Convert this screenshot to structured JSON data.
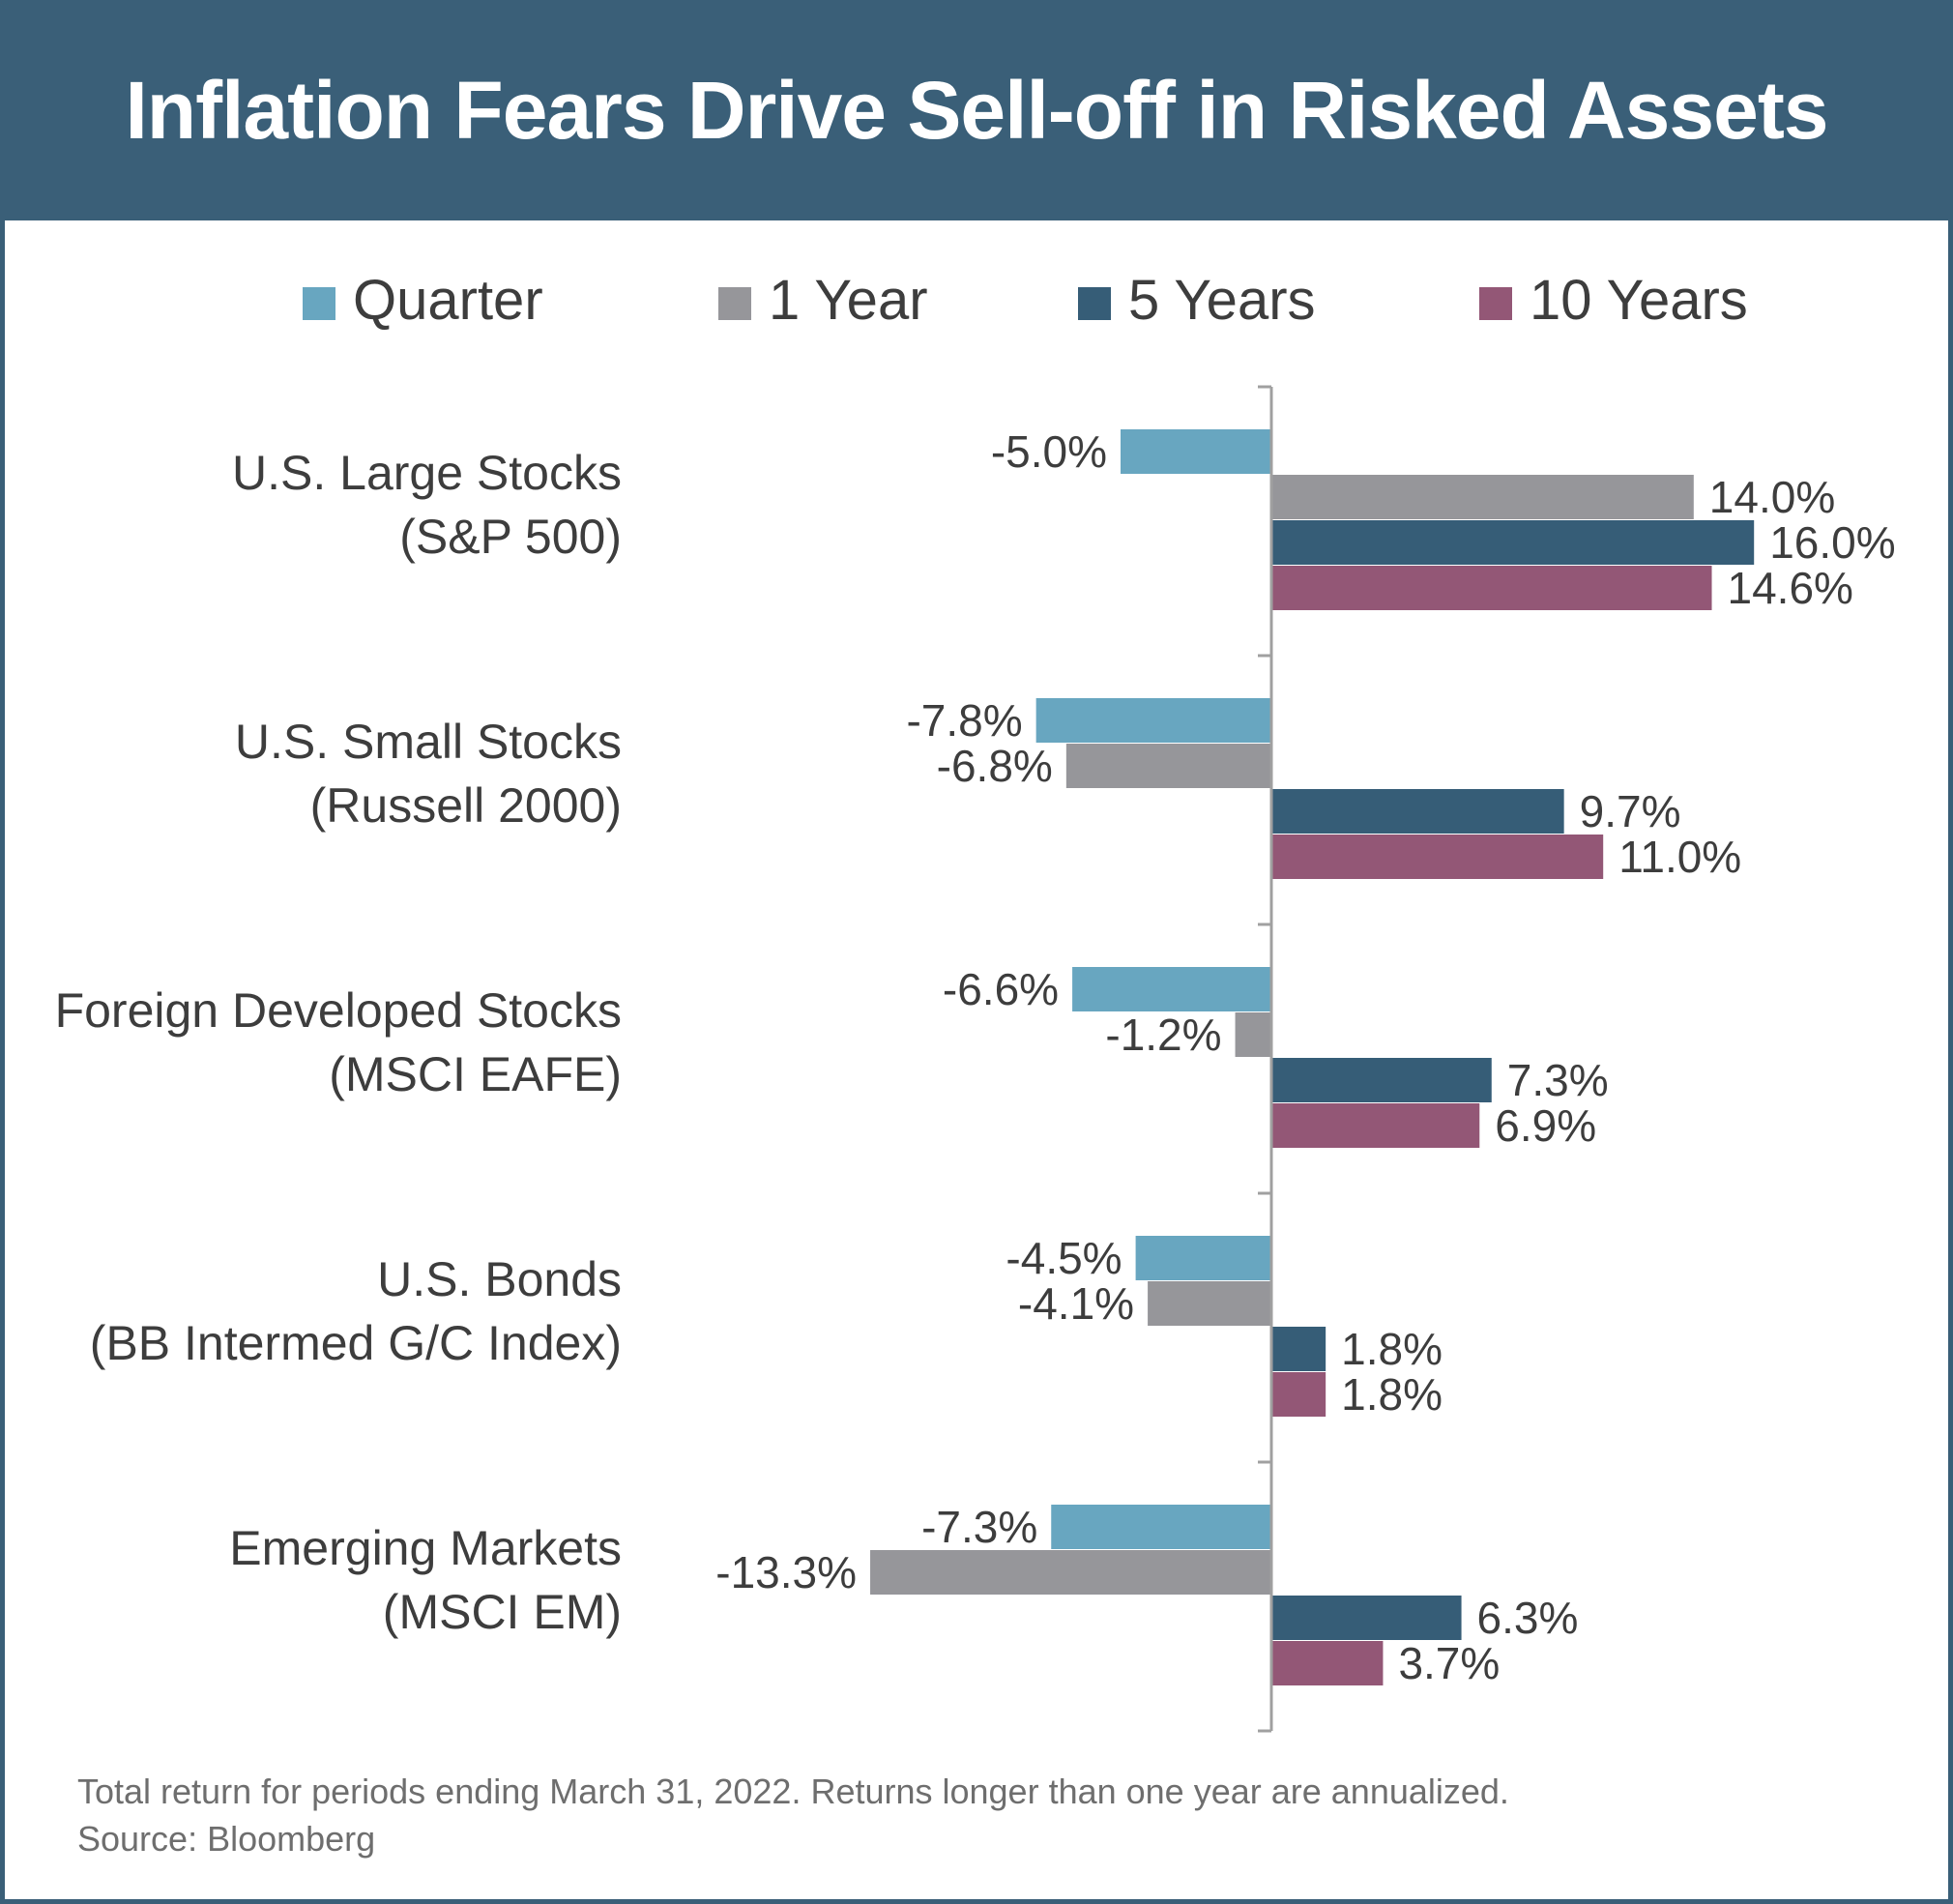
{
  "header": {
    "title": "Inflation Fears Drive Sell-off in Risked Assets"
  },
  "footer": {
    "note": "Total return for periods ending March 31, 2022. Returns longer than one year are annualized.",
    "source": "Source: Bloomberg"
  },
  "colors": {
    "header_bg": "#3a5f78",
    "quarter": "#68a6c0",
    "one_year": "#96969a",
    "five_years": "#365d77",
    "ten_years": "#935776",
    "text": "#3d3d3d"
  },
  "chart_data": {
    "type": "bar",
    "orientation": "horizontal",
    "title": "Inflation Fears Drive Sell-off in Risked Assets",
    "legend_position": "top",
    "grid": false,
    "categories": [
      [
        "U.S. Large Stocks",
        "(S&P 500)"
      ],
      [
        "U.S. Small Stocks",
        "(Russell 2000)"
      ],
      [
        "Foreign Developed Stocks",
        "(MSCI EAFE)"
      ],
      [
        "U.S. Bonds",
        "(BB Intermed G/C Index)"
      ],
      [
        "Emerging Markets",
        "(MSCI EM)"
      ]
    ],
    "series": [
      {
        "name": "Quarter",
        "color": "#68a6c0",
        "values": [
          -5.0,
          -7.8,
          -6.6,
          -4.5,
          -7.3
        ],
        "labels": [
          "-5.0%",
          "-7.8%",
          "-6.6%",
          "-4.5%",
          "-7.3%"
        ]
      },
      {
        "name": "1 Year",
        "color": "#96969a",
        "values": [
          14.0,
          -6.8,
          -1.2,
          -4.1,
          -13.3
        ],
        "labels": [
          "14.0%",
          "-6.8%",
          "-1.2%",
          "-4.1%",
          "-13.3%"
        ]
      },
      {
        "name": "5 Years",
        "color": "#365d77",
        "values": [
          16.0,
          9.7,
          7.3,
          1.8,
          6.3
        ],
        "labels": [
          "16.0%",
          "9.7%",
          "7.3%",
          "1.8%",
          "6.3%"
        ]
      },
      {
        "name": "10 Years",
        "color": "#935776",
        "values": [
          14.6,
          11.0,
          6.9,
          1.8,
          3.7
        ],
        "labels": [
          "14.6%",
          "11.0%",
          "6.9%",
          "1.8%",
          "3.7%"
        ]
      }
    ],
    "unit": "%"
  }
}
